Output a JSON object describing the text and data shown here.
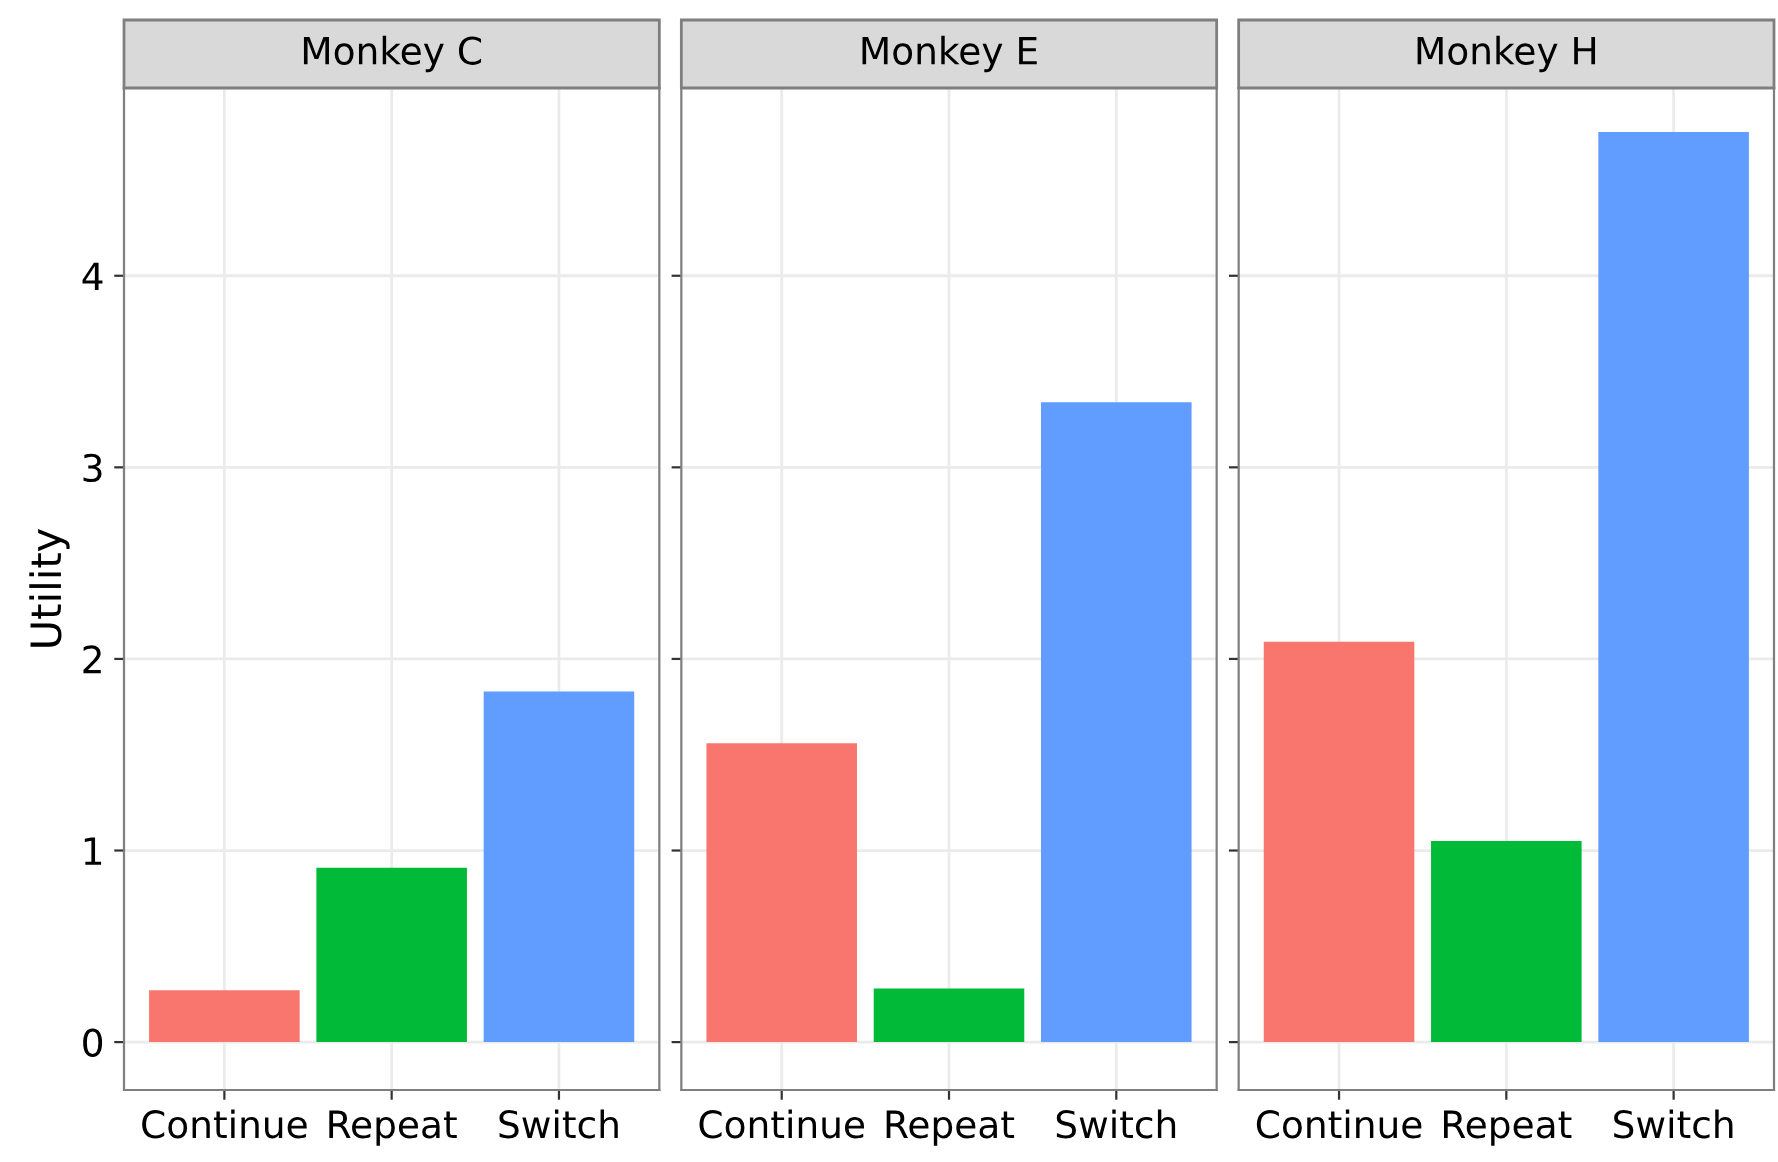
{
  "chart_data": [
    {
      "type": "bar",
      "title": "Monkey C",
      "ylabel": "Utility",
      "categories": [
        "Continue",
        "Repeat",
        "Switch"
      ],
      "values": [
        0.27,
        0.91,
        1.83
      ],
      "colors": [
        "#f8766d",
        "#00ba38",
        "#619cff"
      ],
      "ylim": [
        -0.25,
        4.98
      ],
      "yticks": [
        0,
        1,
        2,
        3,
        4
      ],
      "grid": true
    },
    {
      "type": "bar",
      "title": "Monkey E",
      "categories": [
        "Continue",
        "Repeat",
        "Switch"
      ],
      "values": [
        1.56,
        0.28,
        3.34
      ],
      "colors": [
        "#f8766d",
        "#00ba38",
        "#619cff"
      ],
      "ylim": [
        -0.25,
        4.98
      ],
      "yticks": [
        0,
        1,
        2,
        3,
        4
      ],
      "grid": true,
      "tick_labels": "x"
    },
    {
      "type": "bar",
      "title": "Monkey H",
      "categories": [
        "Continue",
        "Repeat",
        "Switch"
      ],
      "values": [
        2.09,
        1.05,
        4.75
      ],
      "colors": [
        "#f8766d",
        "#00ba38",
        "#619cff"
      ],
      "ylim": [
        -0.25,
        4.98
      ],
      "yticks": [
        0,
        1,
        2,
        3,
        4
      ],
      "grid": true,
      "tick_labels": "x"
    }
  ]
}
